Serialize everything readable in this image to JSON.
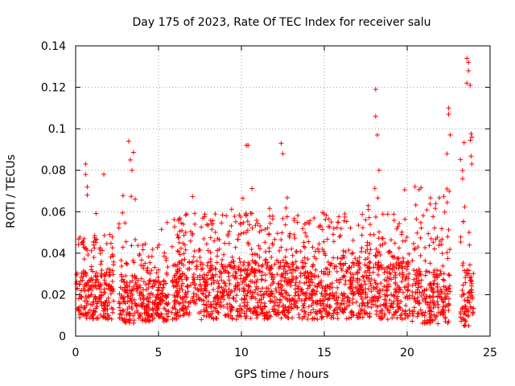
{
  "chart_data": {
    "type": "scatter",
    "title": "Day 175 of 2023, Rate Of TEC Index for receiver salu",
    "xlabel": "GPS time / hours",
    "ylabel": "ROTI / TECUs",
    "xlim": [
      0,
      25
    ],
    "ylim": [
      0,
      0.14
    ],
    "x_ticks": [
      "0",
      "5",
      "10",
      "15",
      "20",
      "25"
    ],
    "y_ticks": [
      "0",
      "0.02",
      "0.04",
      "0.06",
      "0.08",
      "0.1",
      "0.12",
      "0.14"
    ],
    "grid": true,
    "marker": "+",
    "series_color": "#ff0000",
    "segments": [
      {
        "start": 0.0,
        "end": 2.3,
        "base": 0.02,
        "spread": 0.012,
        "peak": 0.06
      },
      {
        "start": 2.6,
        "end": 3.6,
        "base": 0.018,
        "spread": 0.012,
        "peak": 0.094
      },
      {
        "start": 3.6,
        "end": 5.6,
        "base": 0.017,
        "spread": 0.01,
        "peak": 0.055
      },
      {
        "start": 5.8,
        "end": 20.2,
        "base": 0.022,
        "spread": 0.014,
        "peak": 0.072
      },
      {
        "start": 20.3,
        "end": 22.6,
        "base": 0.019,
        "spread": 0.013,
        "peak": 0.097
      },
      {
        "start": 23.2,
        "end": 24.0,
        "base": 0.02,
        "spread": 0.016,
        "peak": 0.134
      }
    ],
    "highlight_points": [
      {
        "x": 0.6,
        "y": 0.083
      },
      {
        "x": 0.6,
        "y": 0.078
      },
      {
        "x": 0.7,
        "y": 0.072
      },
      {
        "x": 0.7,
        "y": 0.068
      },
      {
        "x": 1.7,
        "y": 0.078
      },
      {
        "x": 3.2,
        "y": 0.094
      },
      {
        "x": 3.3,
        "y": 0.085
      },
      {
        "x": 3.4,
        "y": 0.08
      },
      {
        "x": 10.3,
        "y": 0.092
      },
      {
        "x": 10.4,
        "y": 0.092
      },
      {
        "x": 12.4,
        "y": 0.093
      },
      {
        "x": 12.5,
        "y": 0.088
      },
      {
        "x": 18.1,
        "y": 0.119
      },
      {
        "x": 18.1,
        "y": 0.106
      },
      {
        "x": 18.2,
        "y": 0.097
      },
      {
        "x": 18.3,
        "y": 0.08
      },
      {
        "x": 22.5,
        "y": 0.11
      },
      {
        "x": 22.5,
        "y": 0.107
      },
      {
        "x": 22.6,
        "y": 0.097
      },
      {
        "x": 22.4,
        "y": 0.088
      },
      {
        "x": 23.6,
        "y": 0.134
      },
      {
        "x": 23.7,
        "y": 0.132
      },
      {
        "x": 23.7,
        "y": 0.128
      },
      {
        "x": 23.6,
        "y": 0.122
      },
      {
        "x": 23.8,
        "y": 0.121
      },
      {
        "x": 23.9,
        "y": 0.096
      },
      {
        "x": 23.9,
        "y": 0.083
      }
    ]
  }
}
